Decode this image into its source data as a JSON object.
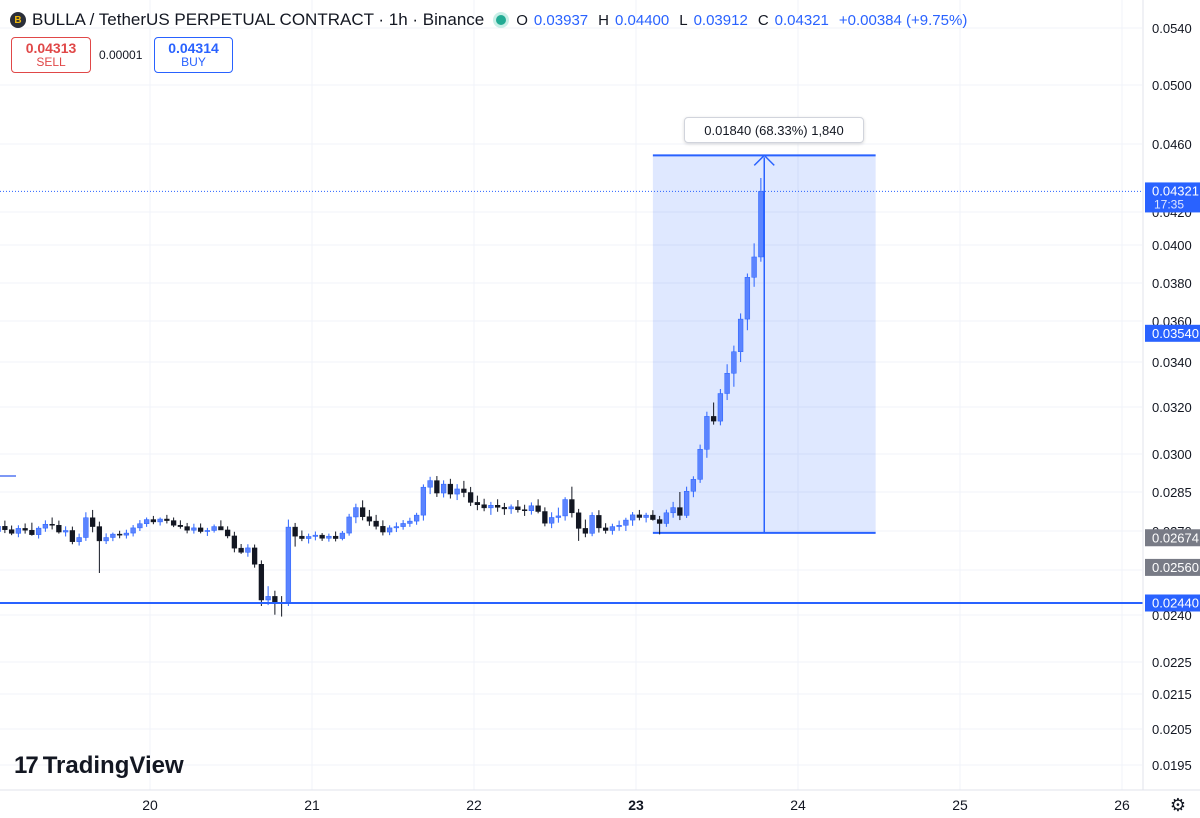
{
  "header": {
    "icon_label": "B",
    "title": "BULLA / TetherUS PERPETUAL CONTRACT · 1h · Binance",
    "ohlc": {
      "o_label": "O",
      "o": "0.03937",
      "h_label": "H",
      "h": "0.04400",
      "l_label": "L",
      "l": "0.03912",
      "c_label": "C",
      "c": "0.04321",
      "change": "+0.00384 (+9.75%)"
    }
  },
  "trade": {
    "sell_price": "0.04313",
    "sell_label": "SELL",
    "spread": "0.00001",
    "buy_price": "0.04314",
    "buy_label": "BUY"
  },
  "measure": {
    "label": "0.01840 (68.33%) 1,840",
    "from": 0.02693,
    "to": 0.04533
  },
  "branding": {
    "logo": "TradingView",
    "logo_mark": "17"
  },
  "chart_data": {
    "type": "candlestick",
    "ylim": [
      0.0186,
      0.055
    ],
    "y_ticks": [
      {
        "v": 0.054,
        "label": "0.0540"
      },
      {
        "v": 0.05,
        "label": "0.0500"
      },
      {
        "v": 0.046,
        "label": "0.0460"
      },
      {
        "v": 0.042,
        "label": "0.0420"
      },
      {
        "v": 0.04,
        "label": "0.0400"
      },
      {
        "v": 0.038,
        "label": "0.0380"
      },
      {
        "v": 0.036,
        "label": "0.0360"
      },
      {
        "v": 0.034,
        "label": "0.0340"
      },
      {
        "v": 0.032,
        "label": "0.0320"
      },
      {
        "v": 0.03,
        "label": "0.0300"
      },
      {
        "v": 0.0285,
        "label": "0.0285"
      },
      {
        "v": 0.027,
        "label": "0.0270"
      },
      {
        "v": 0.0255,
        "label": "0.0255"
      },
      {
        "v": 0.024,
        "label": "0.0240"
      },
      {
        "v": 0.0225,
        "label": "0.0225"
      },
      {
        "v": 0.0215,
        "label": "0.0215"
      },
      {
        "v": 0.0205,
        "label": "0.0205"
      },
      {
        "v": 0.0195,
        "label": "0.0195"
      }
    ],
    "x_ticks": [
      {
        "t": 24,
        "label": "20",
        "bold": false
      },
      {
        "t": 48,
        "label": "21",
        "bold": false
      },
      {
        "t": 72,
        "label": "22",
        "bold": false
      },
      {
        "t": 96,
        "label": "23",
        "bold": true
      },
      {
        "t": 120,
        "label": "24",
        "bold": false
      },
      {
        "t": 144,
        "label": "25",
        "bold": false
      },
      {
        "t": 168,
        "label": "26",
        "bold": false
      }
    ],
    "price_labels": [
      {
        "v": 0.04321,
        "label": "0.04321",
        "sub": "17:35",
        "color": "#2962ff"
      },
      {
        "v": 0.0354,
        "label": "0.03540",
        "color": "#2962ff"
      },
      {
        "v": 0.02674,
        "label": "0.02674",
        "color": "#787b86"
      },
      {
        "v": 0.0256,
        "label": "0.02560",
        "color": "#787b86"
      },
      {
        "v": 0.0244,
        "label": "0.02440",
        "color": "#2962ff"
      }
    ],
    "support_line": 0.0244,
    "last_price": 0.04321,
    "measure_box": {
      "from_t": 98.5,
      "to_t": 131.5,
      "low": 0.02693,
      "high": 0.04533
    },
    "candles_open": 0.02683,
    "candles_close_t0": 1,
    "candles_step_h": 1,
    "candles": [
      [
        0.02683,
        0.02718,
        0.02641,
        0.02698
      ],
      [
        0.02698,
        0.02731,
        0.02683,
        0.02718
      ],
      [
        0.02718,
        0.0274,
        0.02692,
        0.02705
      ],
      [
        0.02705,
        0.02721,
        0.02684,
        0.02691
      ],
      [
        0.02691,
        0.02722,
        0.02676,
        0.0271
      ],
      [
        0.0271,
        0.02729,
        0.0269,
        0.02703
      ],
      [
        0.02703,
        0.02732,
        0.02682,
        0.02686
      ],
      [
        0.02686,
        0.02718,
        0.02671,
        0.02711
      ],
      [
        0.02711,
        0.02741,
        0.02697,
        0.02726
      ],
      [
        0.02726,
        0.02752,
        0.02706,
        0.02722
      ],
      [
        0.02722,
        0.0274,
        0.0269,
        0.02696
      ],
      [
        0.02696,
        0.02718,
        0.02679,
        0.02702
      ],
      [
        0.02702,
        0.02717,
        0.02649,
        0.02659
      ],
      [
        0.02659,
        0.0269,
        0.02644,
        0.02675
      ],
      [
        0.02675,
        0.02772,
        0.02662,
        0.02751
      ],
      [
        0.02751,
        0.02781,
        0.02695,
        0.02717
      ],
      [
        0.02717,
        0.02736,
        0.0254,
        0.02662
      ],
      [
        0.02662,
        0.02691,
        0.0265,
        0.02675
      ],
      [
        0.02675,
        0.02694,
        0.02661,
        0.02688
      ],
      [
        0.02688,
        0.02701,
        0.02672,
        0.02684
      ],
      [
        0.02684,
        0.02705,
        0.02671,
        0.02692
      ],
      [
        0.02692,
        0.02723,
        0.02679,
        0.02712
      ],
      [
        0.02712,
        0.02742,
        0.027,
        0.02728
      ],
      [
        0.02728,
        0.02752,
        0.02716,
        0.02744
      ],
      [
        0.02744,
        0.02758,
        0.02726,
        0.02735
      ],
      [
        0.02735,
        0.02752,
        0.02721,
        0.02746
      ],
      [
        0.02746,
        0.02762,
        0.02729,
        0.0274
      ],
      [
        0.0274,
        0.02752,
        0.02715,
        0.02722
      ],
      [
        0.02722,
        0.02741,
        0.02709,
        0.02717
      ],
      [
        0.02717,
        0.02731,
        0.02691,
        0.02703
      ],
      [
        0.02703,
        0.02728,
        0.0269,
        0.02712
      ],
      [
        0.02712,
        0.02729,
        0.02691,
        0.02698
      ],
      [
        0.02698,
        0.02712,
        0.02681,
        0.02702
      ],
      [
        0.02702,
        0.02725,
        0.02694,
        0.02717
      ],
      [
        0.02717,
        0.02741,
        0.02705,
        0.02704
      ],
      [
        0.02704,
        0.02718,
        0.02672,
        0.02681
      ],
      [
        0.02681,
        0.02697,
        0.02618,
        0.02634
      ],
      [
        0.02634,
        0.0265,
        0.02612,
        0.02618
      ],
      [
        0.02618,
        0.02649,
        0.02601,
        0.02635
      ],
      [
        0.02635,
        0.02648,
        0.02559,
        0.02572
      ],
      [
        0.02572,
        0.02587,
        0.0243,
        0.0245
      ],
      [
        0.0245,
        0.02496,
        0.02433,
        0.02462
      ],
      [
        0.02462,
        0.02481,
        0.02401,
        0.02442
      ],
      [
        0.02442,
        0.02463,
        0.02395,
        0.02439
      ],
      [
        0.02439,
        0.02744,
        0.0243,
        0.02715
      ],
      [
        0.02715,
        0.02731,
        0.0264,
        0.0268
      ],
      [
        0.0268,
        0.02702,
        0.02661,
        0.02671
      ],
      [
        0.02671,
        0.0269,
        0.02652,
        0.02679
      ],
      [
        0.02679,
        0.02698,
        0.02664,
        0.02684
      ],
      [
        0.02684,
        0.02692,
        0.02662,
        0.02672
      ],
      [
        0.02672,
        0.0269,
        0.02659,
        0.0268
      ],
      [
        0.0268,
        0.02698,
        0.0266,
        0.02671
      ],
      [
        0.02671,
        0.027,
        0.02664,
        0.02692
      ],
      [
        0.02692,
        0.02766,
        0.02682,
        0.02754
      ],
      [
        0.02754,
        0.02805,
        0.0273,
        0.0279
      ],
      [
        0.0279,
        0.02818,
        0.02741,
        0.02755
      ],
      [
        0.02755,
        0.02781,
        0.0272,
        0.02738
      ],
      [
        0.02738,
        0.02762,
        0.02706,
        0.02718
      ],
      [
        0.02718,
        0.02741,
        0.02683,
        0.02696
      ],
      [
        0.02696,
        0.02722,
        0.02684,
        0.02712
      ],
      [
        0.02712,
        0.02733,
        0.02696,
        0.02717
      ],
      [
        0.02717,
        0.02742,
        0.02705,
        0.02729
      ],
      [
        0.02729,
        0.02751,
        0.02716,
        0.02738
      ],
      [
        0.02738,
        0.0277,
        0.02724,
        0.02761
      ],
      [
        0.02761,
        0.0288,
        0.0274,
        0.02869
      ],
      [
        0.02869,
        0.0291,
        0.02842,
        0.02895
      ],
      [
        0.02895,
        0.02913,
        0.02831,
        0.02846
      ],
      [
        0.02846,
        0.02896,
        0.02829,
        0.02881
      ],
      [
        0.02881,
        0.02902,
        0.02825,
        0.02842
      ],
      [
        0.02842,
        0.02881,
        0.02819,
        0.02862
      ],
      [
        0.02862,
        0.02894,
        0.0283,
        0.02848
      ],
      [
        0.02848,
        0.0287,
        0.02796,
        0.0281
      ],
      [
        0.0281,
        0.02836,
        0.0278,
        0.02801
      ],
      [
        0.02801,
        0.02824,
        0.02776,
        0.02789
      ],
      [
        0.02789,
        0.02812,
        0.02762,
        0.02799
      ],
      [
        0.02799,
        0.02822,
        0.02774,
        0.02791
      ],
      [
        0.02791,
        0.02808,
        0.02762,
        0.02785
      ],
      [
        0.02785,
        0.02802,
        0.02766,
        0.02793
      ],
      [
        0.02793,
        0.02819,
        0.02771,
        0.02782
      ],
      [
        0.02782,
        0.02801,
        0.02758,
        0.02778
      ],
      [
        0.02778,
        0.0281,
        0.02763,
        0.02797
      ],
      [
        0.02797,
        0.02822,
        0.02768,
        0.02775
      ],
      [
        0.02775,
        0.02791,
        0.02718,
        0.0273
      ],
      [
        0.0273,
        0.02772,
        0.02711,
        0.02752
      ],
      [
        0.02752,
        0.0279,
        0.02732,
        0.02758
      ],
      [
        0.02758,
        0.0283,
        0.0274,
        0.02821
      ],
      [
        0.02821,
        0.02871,
        0.02752,
        0.0277
      ],
      [
        0.0277,
        0.02785,
        0.02662,
        0.0271
      ],
      [
        0.0271,
        0.02744,
        0.02676,
        0.02691
      ],
      [
        0.02691,
        0.02772,
        0.0268,
        0.0276
      ],
      [
        0.0276,
        0.0278,
        0.02694,
        0.02712
      ],
      [
        0.02712,
        0.0273,
        0.0269,
        0.02702
      ],
      [
        0.02702,
        0.02728,
        0.02686,
        0.02717
      ],
      [
        0.02717,
        0.0274,
        0.02701,
        0.02722
      ],
      [
        0.02722,
        0.02751,
        0.027,
        0.02742
      ],
      [
        0.02742,
        0.02773,
        0.0272,
        0.02762
      ],
      [
        0.02762,
        0.02781,
        0.02741,
        0.02752
      ],
      [
        0.02752,
        0.0277,
        0.02733,
        0.02761
      ],
      [
        0.02761,
        0.0278,
        0.0274,
        0.02744
      ],
      [
        0.02744,
        0.02758,
        0.02687,
        0.02729
      ],
      [
        0.02729,
        0.02782,
        0.02716,
        0.0277
      ],
      [
        0.0277,
        0.02812,
        0.02751,
        0.0279
      ],
      [
        0.0279,
        0.0285,
        0.02742,
        0.0276
      ],
      [
        0.0276,
        0.02871,
        0.0275,
        0.02853
      ],
      [
        0.02853,
        0.02912,
        0.0283,
        0.029
      ],
      [
        0.029,
        0.0304,
        0.02886,
        0.0302
      ],
      [
        0.0302,
        0.0318,
        0.02985,
        0.0316
      ],
      [
        0.0316,
        0.0322,
        0.03125,
        0.0314
      ],
      [
        0.0314,
        0.0328,
        0.03122,
        0.0326
      ],
      [
        0.0326,
        0.0339,
        0.03231,
        0.0335
      ],
      [
        0.0335,
        0.0348,
        0.0329,
        0.0345
      ],
      [
        0.0345,
        0.0364,
        0.034,
        0.0361
      ],
      [
        0.0361,
        0.0385,
        0.03555,
        0.0383
      ],
      [
        0.0383,
        0.0401,
        0.0378,
        0.03937
      ],
      [
        0.03937,
        0.044,
        0.03912,
        0.04321
      ]
    ]
  }
}
